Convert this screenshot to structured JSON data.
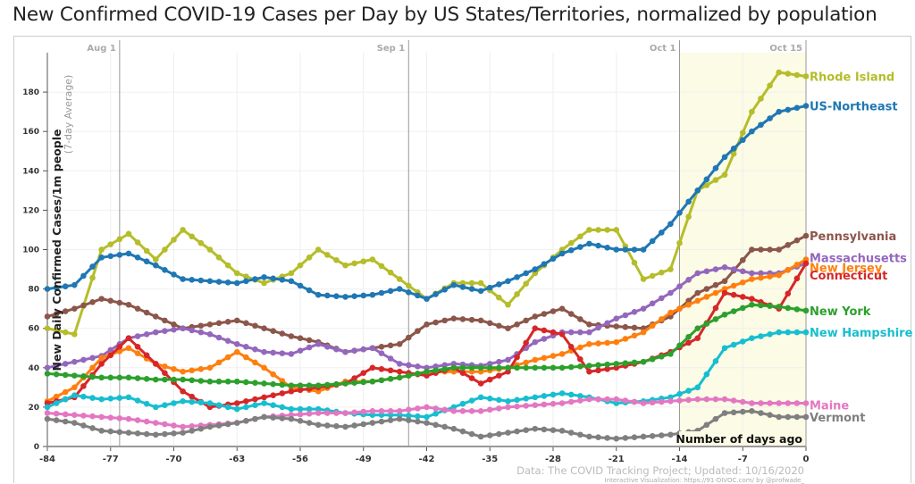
{
  "chart_data": {
    "type": "line",
    "title": "New Confirmed COVID-19 Cases per Day by US States/Territories, normalized by population",
    "ylabel": "New Daily Confirmed Cases/1m people",
    "ylabel_sub": "(7-day Average)",
    "xlabel": "Number of days ago",
    "xlim": [
      -84,
      0
    ],
    "ylim": [
      0,
      200
    ],
    "xticks": [
      -84,
      -77,
      -70,
      -63,
      -56,
      -49,
      -42,
      -35,
      -28,
      -21,
      -14,
      -7,
      0
    ],
    "yticks": [
      0,
      20,
      40,
      60,
      80,
      100,
      120,
      140,
      160,
      180
    ],
    "date_markers": [
      {
        "label": "Aug 1",
        "day": -76
      },
      {
        "label": "Sep 1",
        "day": -44
      },
      {
        "label": "Oct 1",
        "day": -14
      },
      {
        "label": "Oct 15",
        "day": 0
      }
    ],
    "highlight_range": [
      -14,
      0
    ],
    "source": "Data: The COVID Tracking Project; Updated: 10/16/2020",
    "credit": "Interactive Visualization: https://91-DIVOC.com/ by @profwade_",
    "x": [
      -84,
      -81,
      -78,
      -75,
      -72,
      -69,
      -66,
      -63,
      -60,
      -57,
      -54,
      -51,
      -48,
      -45,
      -42,
      -39,
      -36,
      -33,
      -30,
      -27,
      -24,
      -21,
      -18,
      -15,
      -12,
      -9,
      -6,
      -3,
      0
    ],
    "series": [
      {
        "name": "Rhode Island",
        "color": "#b5bd2a",
        "values": [
          60,
          57,
          100,
          108,
          95,
          110,
          100,
          88,
          83,
          88,
          100,
          92,
          95,
          85,
          75,
          83,
          83,
          72,
          88,
          100,
          110,
          110,
          85,
          90,
          130,
          138,
          170,
          190,
          188
        ]
      },
      {
        "name": "US-Northeast",
        "color": "#1f77b4",
        "values": [
          80,
          82,
          96,
          98,
          92,
          85,
          84,
          83,
          86,
          84,
          77,
          76,
          77,
          80,
          75,
          82,
          79,
          84,
          90,
          98,
          103,
          100,
          100,
          113,
          130,
          147,
          160,
          170,
          173
        ]
      },
      {
        "name": "Pennsylvania",
        "color": "#8c564b",
        "values": [
          66,
          70,
          75,
          72,
          66,
          60,
          62,
          64,
          60,
          56,
          53,
          48,
          50,
          52,
          62,
          65,
          64,
          60,
          66,
          70,
          62,
          61,
          60,
          66,
          78,
          84,
          100,
          100,
          107
        ]
      },
      {
        "name": "Massachusetts",
        "color": "#9467bd",
        "values": [
          40,
          43,
          46,
          55,
          58,
          60,
          57,
          52,
          48,
          47,
          52,
          48,
          50,
          42,
          40,
          42,
          41,
          44,
          53,
          58,
          58,
          65,
          70,
          78,
          88,
          91,
          88,
          88,
          93
        ]
      },
      {
        "name": "New Jersey",
        "color": "#ff7f0e",
        "values": [
          23,
          30,
          45,
          50,
          42,
          38,
          40,
          48,
          40,
          30,
          28,
          33,
          33,
          35,
          38,
          38,
          38,
          40,
          44,
          47,
          52,
          53,
          58,
          68,
          74,
          80,
          85,
          87,
          95
        ]
      },
      {
        "name": "Connecticut",
        "color": "#d62728",
        "values": [
          22,
          25,
          42,
          55,
          42,
          28,
          20,
          22,
          25,
          28,
          30,
          32,
          40,
          38,
          36,
          40,
          32,
          38,
          60,
          57,
          38,
          40,
          43,
          48,
          55,
          78,
          75,
          70,
          93
        ]
      },
      {
        "name": "New York",
        "color": "#2ca02c",
        "values": [
          37,
          36,
          35,
          35,
          34,
          34,
          33,
          33,
          32,
          31,
          31,
          32,
          33,
          35,
          38,
          40,
          40,
          40,
          40,
          40,
          41,
          42,
          43,
          47,
          60,
          67,
          72,
          71,
          69
        ]
      },
      {
        "name": "New Hampshire",
        "color": "#17becf",
        "values": [
          20,
          26,
          24,
          25,
          20,
          23,
          22,
          19,
          22,
          19,
          19,
          17,
          16,
          16,
          15,
          20,
          25,
          23,
          25,
          27,
          25,
          22,
          23,
          25,
          30,
          50,
          55,
          58,
          58
        ]
      },
      {
        "name": "Maine",
        "color": "#e377c2",
        "values": [
          17,
          16,
          15,
          14,
          12,
          10,
          11,
          12,
          15,
          16,
          17,
          17,
          18,
          18,
          20,
          18,
          18,
          20,
          21,
          22,
          24,
          24,
          22,
          23,
          24,
          24,
          22,
          22,
          22
        ]
      },
      {
        "name": "Vermont",
        "color": "#7f7f7f",
        "values": [
          14,
          12,
          8,
          7,
          6,
          7,
          10,
          12,
          15,
          14,
          11,
          10,
          12,
          14,
          12,
          9,
          5,
          7,
          9,
          8,
          5,
          4,
          5,
          6,
          8,
          17,
          18,
          15,
          15
        ]
      }
    ],
    "legend": "right"
  }
}
